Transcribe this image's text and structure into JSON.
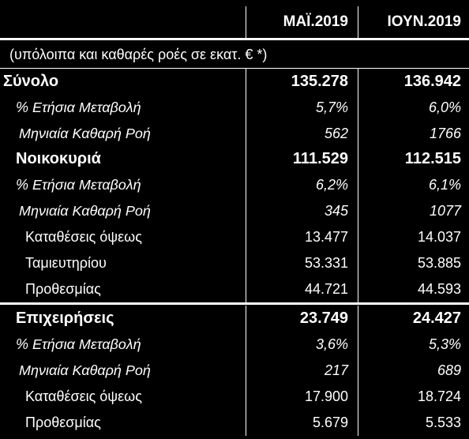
{
  "header": {
    "col1": "ΜΑΪ.2019",
    "col2": "ΙΟΥΝ.2019"
  },
  "units": "(υπόλοιπα  και καθαρές ροές σε εκατ. € *)",
  "rows": [
    {
      "label": "Σύνολο",
      "v1": "135.278",
      "v2": "136.942"
    },
    {
      "label": "% Ετήσια Μεταβολή",
      "v1": "5,7%",
      "v2": "6,0%"
    },
    {
      "label": "Μηνιαία Καθαρή Ροή",
      "v1": "562",
      "v2": "1766"
    },
    {
      "label": "Νοικοκυριά",
      "v1": "111.529",
      "v2": "112.515"
    },
    {
      "label": "% Ετήσια Μεταβολή",
      "v1": "6,2%",
      "v2": "6,1%"
    },
    {
      "label": "Μηνιαία Καθαρή Ροή",
      "v1": "345",
      "v2": "1077"
    },
    {
      "label": "Καταθέσεις όψεως",
      "v1": "13.477",
      "v2": "14.037"
    },
    {
      "label": "Ταμιευτηρίου",
      "v1": "53.331",
      "v2": "53.885"
    },
    {
      "label": "Προθεσμίας",
      "v1": "44.721",
      "v2": "44.593"
    },
    {
      "label": "Επιχειρήσεις",
      "v1": "23.749",
      "v2": "24.427"
    },
    {
      "label": "% Ετήσια Μεταβολή",
      "v1": "3,6%",
      "v2": "5,3%"
    },
    {
      "label": "Μηνιαία Καθαρή Ροή",
      "v1": "217",
      "v2": "689"
    },
    {
      "label": "Καταθέσεις όψεως",
      "v1": "17.900",
      "v2": "18.724"
    },
    {
      "label": "Προθεσμίας",
      "v1": "5.679",
      "v2": "5.533"
    }
  ]
}
